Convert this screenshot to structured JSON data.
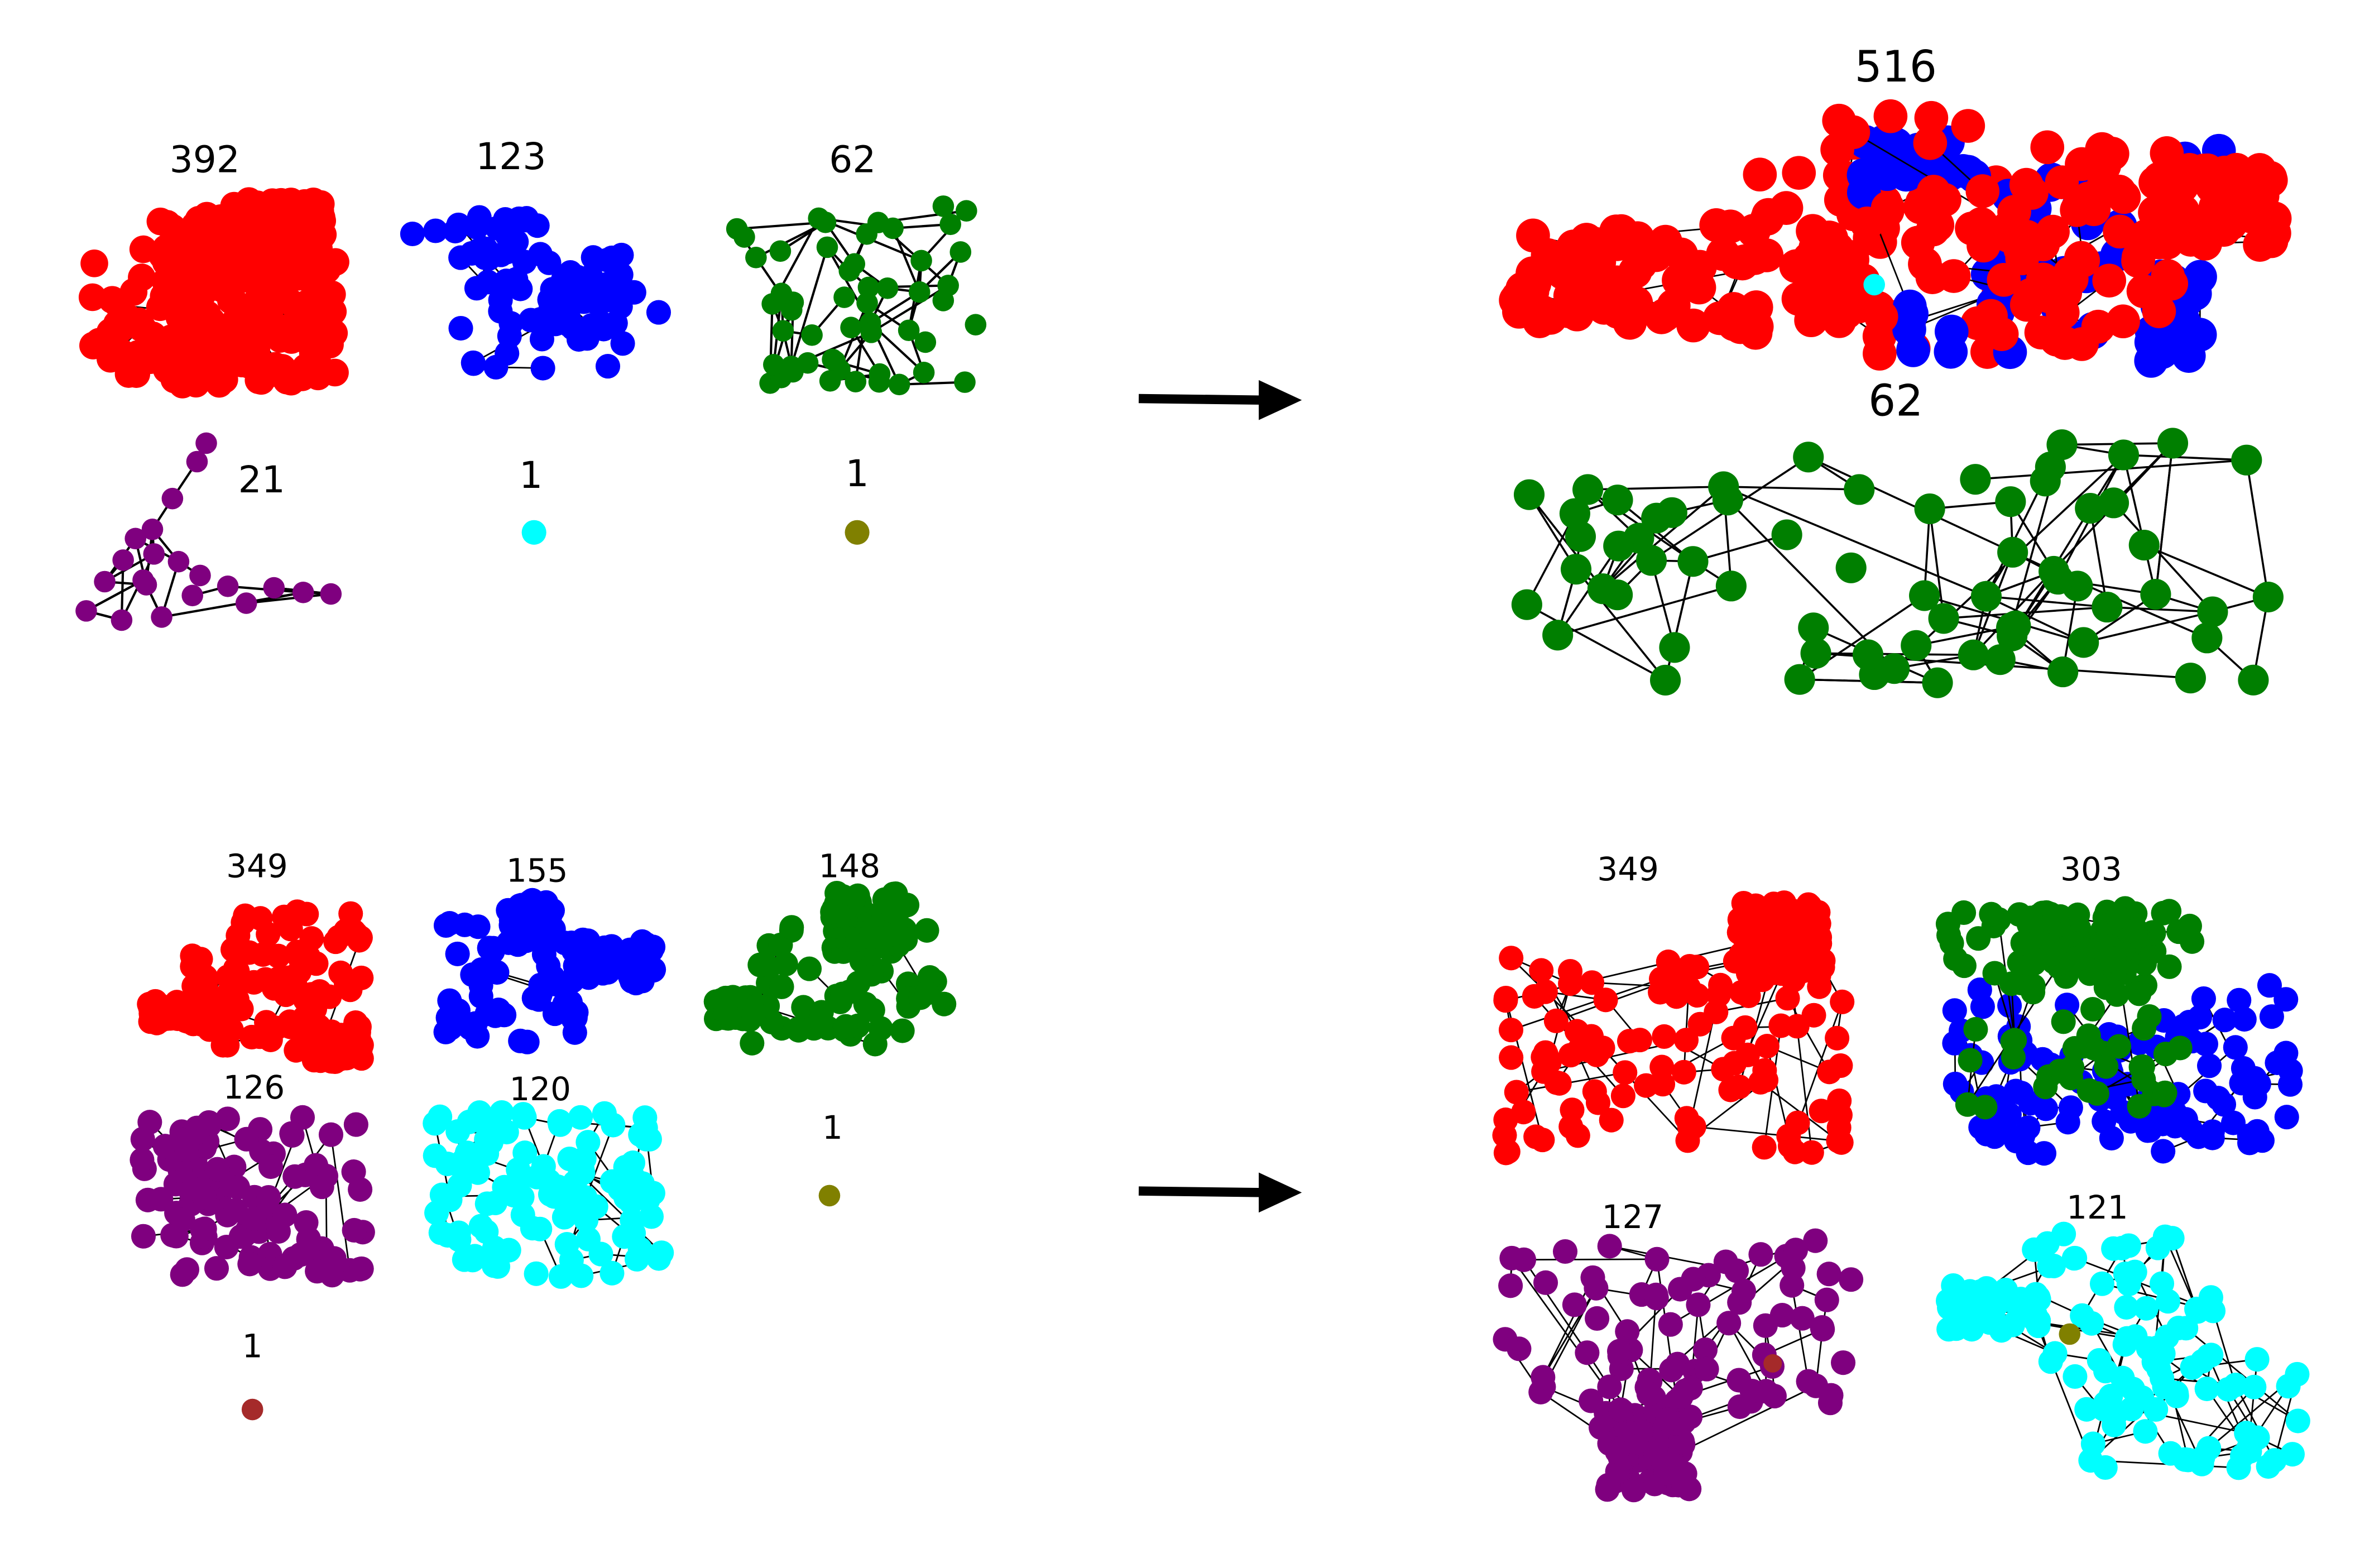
{
  "colors": {
    "red": "#ff0000",
    "blue": "#0000ff",
    "green": "#007f00",
    "purple": "#7f007f",
    "cyan": "#00ffff",
    "olive": "#808000",
    "brown": "#a52a2a",
    "edge": "#000000",
    "arrow": "#000000"
  },
  "panels": [
    {
      "id": "top-before",
      "clusters": [
        {
          "id": "t-red",
          "label": "392",
          "color": "red",
          "size": 392
        },
        {
          "id": "t-blue",
          "label": "123",
          "color": "blue",
          "size": 123
        },
        {
          "id": "t-green",
          "label": "62",
          "color": "green",
          "size": 62
        },
        {
          "id": "t-purple",
          "label": "21",
          "color": "purple",
          "size": 21
        },
        {
          "id": "t-cyan",
          "label": "1",
          "color": "cyan",
          "size": 1
        },
        {
          "id": "t-olive",
          "label": "1",
          "color": "olive",
          "size": 1
        }
      ]
    },
    {
      "id": "top-after",
      "clusters": [
        {
          "id": "ta-merged",
          "label": "516",
          "colors": [
            "red",
            "blue",
            "cyan"
          ],
          "size": 516
        },
        {
          "id": "ta-green",
          "label": "62",
          "color": "green",
          "size": 62
        }
      ]
    },
    {
      "id": "bottom-before",
      "clusters": [
        {
          "id": "b-red",
          "label": "349",
          "color": "red",
          "size": 349
        },
        {
          "id": "b-blue",
          "label": "155",
          "color": "blue",
          "size": 155
        },
        {
          "id": "b-green",
          "label": "148",
          "color": "green",
          "size": 148
        },
        {
          "id": "b-purple",
          "label": "126",
          "color": "purple",
          "size": 126
        },
        {
          "id": "b-cyan",
          "label": "120",
          "color": "cyan",
          "size": 120
        },
        {
          "id": "b-olive",
          "label": "1",
          "color": "olive",
          "size": 1
        },
        {
          "id": "b-brown",
          "label": "1",
          "color": "brown",
          "size": 1
        }
      ]
    },
    {
      "id": "bottom-after",
      "clusters": [
        {
          "id": "ba-red",
          "label": "349",
          "color": "red",
          "size": 349
        },
        {
          "id": "ba-bluegreen",
          "label": "303",
          "colors": [
            "blue",
            "green"
          ],
          "size": 303
        },
        {
          "id": "ba-purple",
          "label": "127",
          "colors": [
            "purple",
            "brown"
          ],
          "size": 127
        },
        {
          "id": "ba-cyan",
          "label": "121",
          "colors": [
            "cyan",
            "olive"
          ],
          "size": 121
        }
      ]
    }
  ]
}
